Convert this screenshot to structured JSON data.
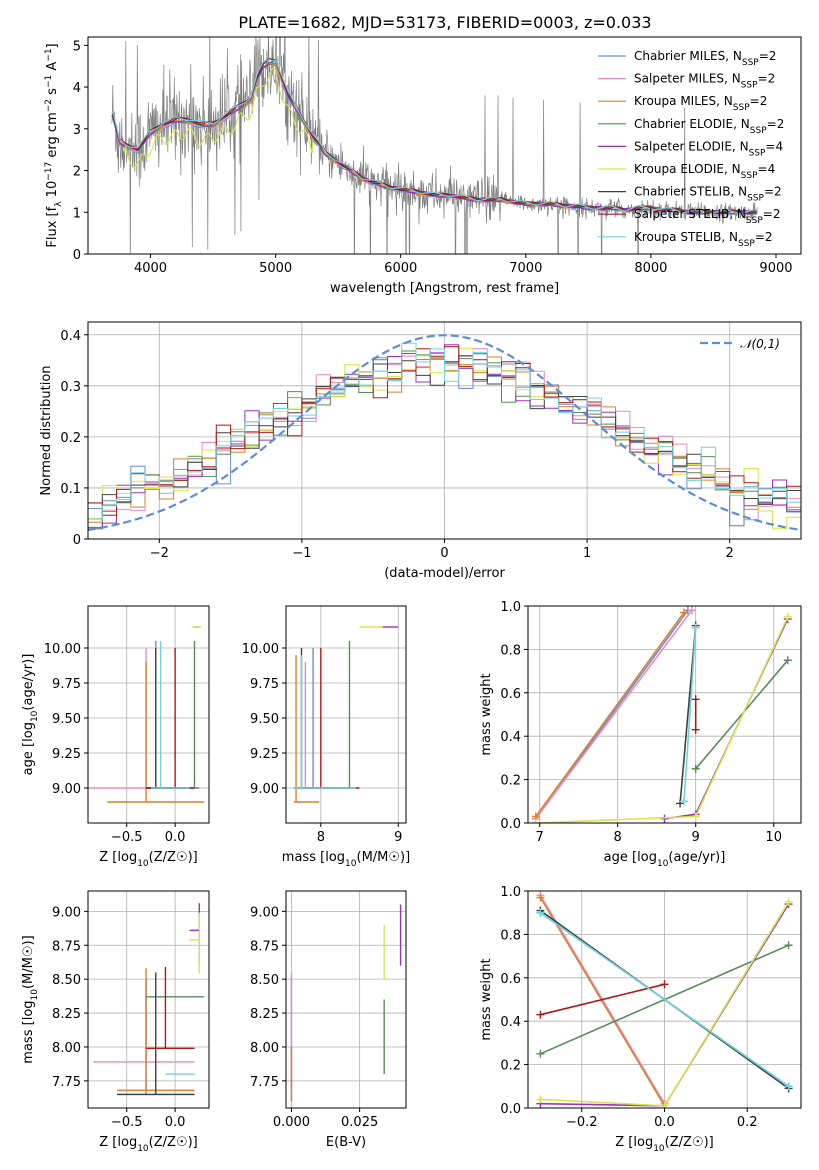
{
  "figure": {
    "title": "PLATE=1682, MJD=53173, FIBERID=0003, z=0.033"
  },
  "models": [
    {
      "name": "Chabrier MILES",
      "color": "#6a8fd6"
    },
    {
      "name": "Salpeter MILES",
      "color": "#e88cc4"
    },
    {
      "name": "Kroupa MILES",
      "color": "#d9822b"
    },
    {
      "name": "Chabrier ELODIE",
      "color": "#5a8a5a"
    },
    {
      "name": "Salpeter ELODIE",
      "color": "#9b30b8"
    },
    {
      "name": "Kroupa ELODIE",
      "color": "#d7e64a"
    },
    {
      "name": "Chabrier STELIB",
      "color": "#404040"
    },
    {
      "name": "Salpeter STELIB",
      "color": "#b01818"
    },
    {
      "name": "Kroupa STELIB",
      "color": "#6fd3dc"
    }
  ],
  "chart_data": [
    {
      "id": "spectrum",
      "type": "line",
      "title": "PLATE=1682, MJD=53173, FIBERID=0003, z=0.033",
      "xlabel": "wavelength [Angstrom, rest frame]",
      "ylabel": "Flux [f_λ 10^-17 erg cm^-2 s^-1 A^-1]",
      "xlim": [
        3500,
        9200
      ],
      "ylim": [
        0,
        5.2
      ],
      "xticks": [
        4000,
        5000,
        6000,
        7000,
        8000,
        9000
      ],
      "yticks": [
        0,
        1,
        2,
        3,
        4,
        5
      ],
      "legend": "top-right",
      "legend_entries": [
        "Chabrier MILES, N_SSP=2",
        "Salpeter MILES, N_SSP=2",
        "Kroupa MILES, N_SSP=2",
        "Chabrier ELODIE, N_SSP=2",
        "Salpeter ELODIE, N_SSP=4",
        "Kroupa ELODIE, N_SSP=4",
        "Chabrier STELIB, N_SSP=2",
        "Salpeter STELIB, N_SSP=2",
        "Kroupa STELIB, N_SSP=2"
      ],
      "model_curve": {
        "x": [
          3700,
          3750,
          3800,
          3900,
          4000,
          4100,
          4200,
          4300,
          4400,
          4500,
          4600,
          4700,
          4800,
          4850,
          4900,
          4950,
          5000,
          5050,
          5100,
          5200,
          5300,
          5400,
          5500,
          5600,
          5700,
          5800,
          5900,
          6000,
          6100,
          6200,
          6300,
          6400,
          6500,
          6600,
          6700,
          6800,
          6900,
          7000,
          7100,
          7200,
          7300,
          7400,
          7500,
          7600,
          7700,
          7800,
          7900,
          8000,
          8100,
          8200,
          8300,
          8400,
          8500,
          8600,
          8700,
          8800,
          8850
        ],
        "y": [
          3.3,
          2.7,
          2.6,
          2.5,
          2.9,
          3.1,
          3.2,
          3.2,
          3.1,
          3.1,
          3.3,
          3.5,
          3.7,
          4.2,
          4.5,
          4.6,
          4.6,
          4.2,
          3.8,
          3.3,
          2.8,
          2.4,
          2.2,
          2.0,
          1.8,
          1.7,
          1.6,
          1.55,
          1.5,
          1.45,
          1.4,
          1.4,
          1.35,
          1.3,
          1.3,
          1.3,
          1.25,
          1.2,
          1.2,
          1.2,
          1.15,
          1.15,
          1.1,
          1.1,
          1.1,
          1.05,
          1.1,
          1.1,
          1.05,
          1.05,
          1.0,
          1.0,
          1.0,
          1.0,
          1.0,
          1.0,
          1.0
        ]
      },
      "data_curve": {
        "name": "observed",
        "color": "#808080"
      }
    },
    {
      "id": "residuals",
      "type": "line",
      "xlabel": "(data-model)/error",
      "ylabel": "Normed distribution",
      "xlim": [
        -2.5,
        2.5
      ],
      "ylim": [
        0,
        0.425
      ],
      "xticks": [
        -2,
        -1,
        0,
        1,
        2
      ],
      "yticks": [
        0.0,
        0.1,
        0.2,
        0.3,
        0.4
      ],
      "grid": true,
      "legend": "top-right",
      "reference": {
        "name": "𝒩(0,1)",
        "color": "#5b8dd8",
        "mu": 0,
        "sigma": 1
      },
      "histogram_bin_width": 0.1
    },
    {
      "id": "age_vs_Z",
      "type": "scatter",
      "xlabel": "Z [log10(Z/Z☉)]",
      "ylabel": "age  [log10(age/yr)]",
      "xlim": [
        -0.9,
        0.35
      ],
      "ylim": [
        8.75,
        10.3
      ],
      "xticks": [
        -0.5,
        0.0
      ],
      "yticks": [
        9.0,
        9.25,
        9.5,
        9.75,
        10.0
      ],
      "grid": true,
      "errorbars": [
        {
          "model": 0,
          "x": -0.2,
          "y": 9.0,
          "xerr": [
            0.05,
            0.05
          ],
          "yerr": [
            0.0,
            1.05
          ]
        },
        {
          "model": 1,
          "x": -0.3,
          "y": 9.0,
          "xerr": [
            0.6,
            0.4
          ],
          "yerr": [
            0.0,
            1.0
          ]
        },
        {
          "model": 2,
          "x": -0.3,
          "y": 8.9,
          "xerr": [
            0.4,
            0.6
          ],
          "yerr": [
            0.0,
            1.0
          ]
        },
        {
          "model": 3,
          "x": 0.2,
          "y": 9.0,
          "xerr": [
            0.5,
            0.05
          ],
          "yerr": [
            0.0,
            1.05
          ]
        },
        {
          "model": 4,
          "x": 0.25,
          "y": 10.15,
          "xerr": [
            0.05,
            0.0
          ],
          "yerr": [
            0.0,
            0.0
          ]
        },
        {
          "model": 5,
          "x": 0.22,
          "y": 10.15,
          "xerr": [
            0.05,
            0.05
          ],
          "yerr": [
            0.0,
            0.0
          ]
        },
        {
          "model": 6,
          "x": -0.2,
          "y": 9.0,
          "xerr": [
            0.1,
            0.3
          ],
          "yerr": [
            0.0,
            1.0
          ]
        },
        {
          "model": 7,
          "x": 0.0,
          "y": 9.0,
          "xerr": [
            0.3,
            0.2
          ],
          "yerr": [
            0.0,
            1.0
          ]
        },
        {
          "model": 8,
          "x": -0.15,
          "y": 9.0,
          "xerr": [
            0.1,
            0.3
          ],
          "yerr": [
            0.0,
            1.05
          ]
        }
      ]
    },
    {
      "id": "age_vs_mass",
      "type": "scatter",
      "xlabel": "mass [log10(M/M☉)]",
      "ylabel": "",
      "xlim": [
        7.55,
        9.1
      ],
      "ylim": [
        8.75,
        10.3
      ],
      "xticks": [
        8,
        9
      ],
      "yticks": [
        9.0,
        9.25,
        9.5,
        9.75,
        10.0
      ],
      "grid": true,
      "errorbars": [
        {
          "model": 0,
          "x": 7.9,
          "y": 9.0,
          "xerr": [
            0.2,
            0.1
          ],
          "yerr": [
            0.0,
            1.0
          ]
        },
        {
          "model": 1,
          "x": 7.8,
          "y": 9.0,
          "xerr": [
            0.1,
            0.1
          ],
          "yerr": [
            0.0,
            0.9
          ]
        },
        {
          "model": 2,
          "x": 7.68,
          "y": 8.9,
          "xerr": [
            0.03,
            0.3
          ],
          "yerr": [
            0.0,
            1.05
          ]
        },
        {
          "model": 3,
          "x": 8.37,
          "y": 9.0,
          "xerr": [
            0.6,
            0.0
          ],
          "yerr": [
            0.0,
            1.05
          ]
        },
        {
          "model": 4,
          "x": 8.9,
          "y": 10.15,
          "xerr": [
            0.1,
            0.1
          ],
          "yerr": [
            0.0,
            0.0
          ]
        },
        {
          "model": 5,
          "x": 8.8,
          "y": 10.15,
          "xerr": [
            0.3,
            0.0
          ],
          "yerr": [
            0.0,
            0.0
          ]
        },
        {
          "model": 6,
          "x": 7.75,
          "y": 9.0,
          "xerr": [
            0.1,
            0.1
          ],
          "yerr": [
            0.0,
            1.0
          ]
        },
        {
          "model": 7,
          "x": 8.0,
          "y": 9.0,
          "xerr": [
            0.2,
            0.5
          ],
          "yerr": [
            0.0,
            1.0
          ]
        },
        {
          "model": 8,
          "x": 7.75,
          "y": 9.0,
          "xerr": [
            0.1,
            0.7
          ],
          "yerr": [
            0.0,
            0.95
          ]
        }
      ]
    },
    {
      "id": "weight_vs_age",
      "type": "line",
      "xlabel": "age  [log10(age/yr)]",
      "ylabel": "mass weight",
      "xlim": [
        6.85,
        10.35
      ],
      "ylim": [
        0,
        1.0
      ],
      "xticks": [
        7,
        8,
        9,
        10
      ],
      "yticks": [
        0.0,
        0.2,
        0.4,
        0.6,
        0.8,
        1.0
      ],
      "grid": true,
      "series": [
        {
          "model": 0,
          "x": [
            6.95,
            8.9
          ],
          "y": [
            0.02,
            0.98
          ]
        },
        {
          "model": 1,
          "x": [
            6.95,
            8.95
          ],
          "y": [
            0.02,
            0.98
          ]
        },
        {
          "model": 2,
          "x": [
            6.95,
            8.85
          ],
          "y": [
            0.03,
            0.97
          ]
        },
        {
          "model": 3,
          "x": [
            9.0,
            10.18
          ],
          "y": [
            0.25,
            0.75
          ]
        },
        {
          "model": 4,
          "x": [
            8.6,
            9.0,
            10.18
          ],
          "y": [
            0.02,
            0.04,
            0.94
          ]
        },
        {
          "model": 5,
          "x": [
            6.95,
            9.0,
            10.18
          ],
          "y": [
            0.0,
            0.03,
            0.95
          ]
        },
        {
          "model": 6,
          "x": [
            8.8,
            9.0
          ],
          "y": [
            0.09,
            0.91
          ]
        },
        {
          "model": 7,
          "x": [
            9.0,
            9.0
          ],
          "y": [
            0.43,
            0.57
          ]
        },
        {
          "model": 8,
          "x": [
            8.85,
            9.0
          ],
          "y": [
            0.1,
            0.9
          ]
        }
      ]
    },
    {
      "id": "mass_vs_Z",
      "type": "scatter",
      "xlabel": "Z [log10(Z/Z☉)]",
      "ylabel": "mass [log10(M/M☉)]",
      "xlim": [
        -0.9,
        0.35
      ],
      "ylim": [
        7.55,
        9.15
      ],
      "xticks": [
        -0.5,
        0.0
      ],
      "yticks": [
        7.75,
        8.0,
        8.25,
        8.5,
        8.75,
        9.0
      ],
      "grid": true,
      "errorbars": [
        {
          "model": 0,
          "x": -0.3,
          "y": 7.65,
          "xerr": [
            0.3,
            0.5
          ],
          "yerr": [
            0.0,
            0.85
          ]
        },
        {
          "model": 1,
          "x": -0.3,
          "y": 7.89,
          "xerr": [
            0.55,
            0.5
          ],
          "yerr": [
            0.0,
            0.6
          ]
        },
        {
          "model": 2,
          "x": -0.3,
          "y": 7.68,
          "xerr": [
            0.3,
            0.5
          ],
          "yerr": [
            0.0,
            0.9
          ]
        },
        {
          "model": 3,
          "x": 0.2,
          "y": 8.37,
          "xerr": [
            0.5,
            0.1
          ],
          "yerr": [
            0.0,
            0.0
          ]
        },
        {
          "model": 4,
          "x": 0.25,
          "y": 8.86,
          "xerr": [
            0.1,
            0.0
          ],
          "yerr": [
            0.25,
            0.2
          ]
        },
        {
          "model": 5,
          "x": 0.25,
          "y": 8.79,
          "xerr": [
            0.1,
            0.0
          ],
          "yerr": [
            0.25,
            0.2
          ]
        },
        {
          "model": 6,
          "x": -0.2,
          "y": 7.65,
          "xerr": [
            0.4,
            0.4
          ],
          "yerr": [
            0.0,
            0.9
          ]
        },
        {
          "model": 7,
          "x": -0.1,
          "y": 7.99,
          "xerr": [
            0.2,
            0.3
          ],
          "yerr": [
            0.0,
            0.6
          ]
        },
        {
          "model": 8,
          "x": 0.2,
          "y": 7.8,
          "xerr": [
            0.3,
            0.0
          ],
          "yerr": [
            0.0,
            0.0
          ]
        }
      ]
    },
    {
      "id": "mass_vs_ebv",
      "type": "scatter",
      "xlabel": "E(B-V)",
      "ylabel": "",
      "xlim": [
        -0.002,
        0.042
      ],
      "ylim": [
        7.55,
        9.15
      ],
      "xticks": [
        0.0,
        0.025
      ],
      "yticks": [
        7.75,
        8.0,
        8.25,
        8.5,
        8.75,
        9.0
      ],
      "grid": true,
      "errorbars": [
        {
          "model": 0,
          "x": 0.0,
          "y": 8.0,
          "xerr": [
            0,
            0
          ],
          "yerr": [
            0.4,
            0.5
          ]
        },
        {
          "model": 1,
          "x": 0.0,
          "y": 8.0,
          "xerr": [
            0,
            0
          ],
          "yerr": [
            0.3,
            0.55
          ]
        },
        {
          "model": 2,
          "x": 0.0,
          "y": 7.7,
          "xerr": [
            0,
            0
          ],
          "yerr": [
            0.1,
            0.3
          ]
        },
        {
          "model": 3,
          "x": 0.034,
          "y": 8.05,
          "xerr": [
            0,
            0
          ],
          "yerr": [
            0.25,
            0.3
          ]
        },
        {
          "model": 4,
          "x": 0.04,
          "y": 8.85,
          "xerr": [
            0,
            0
          ],
          "yerr": [
            0.25,
            0.2
          ]
        },
        {
          "model": 5,
          "x": 0.034,
          "y": 8.7,
          "xerr": [
            0,
            0
          ],
          "yerr": [
            0.2,
            0.2
          ]
        }
      ]
    },
    {
      "id": "weight_vs_Z",
      "type": "line",
      "xlabel": "Z [log10(Z/Z☉)]",
      "ylabel": "mass weight",
      "xlim": [
        -0.33,
        0.33
      ],
      "ylim": [
        0,
        1.0
      ],
      "xticks": [
        -0.2,
        0.0,
        0.2
      ],
      "yticks": [
        0.0,
        0.2,
        0.4,
        0.6,
        0.8,
        1.0
      ],
      "grid": true,
      "series": [
        {
          "model": 0,
          "x": [
            -0.3,
            0.3
          ],
          "y": [
            0.9,
            0.1
          ]
        },
        {
          "model": 1,
          "x": [
            -0.3,
            0.0
          ],
          "y": [
            0.98,
            0.02
          ]
        },
        {
          "model": 2,
          "x": [
            -0.3,
            0.0
          ],
          "y": [
            0.97,
            0.01
          ]
        },
        {
          "model": 3,
          "x": [
            -0.3,
            0.3
          ],
          "y": [
            0.25,
            0.75
          ]
        },
        {
          "model": 4,
          "x": [
            -0.3,
            0.0,
            0.3
          ],
          "y": [
            0.02,
            0.01,
            0.94
          ]
        },
        {
          "model": 5,
          "x": [
            -0.3,
            0.0,
            0.3
          ],
          "y": [
            0.04,
            0.01,
            0.95
          ]
        },
        {
          "model": 6,
          "x": [
            -0.3,
            0.3
          ],
          "y": [
            0.91,
            0.09
          ]
        },
        {
          "model": 7,
          "x": [
            -0.3,
            0.0
          ],
          "y": [
            0.43,
            0.57
          ]
        },
        {
          "model": 8,
          "x": [
            -0.3,
            0.3
          ],
          "y": [
            0.9,
            0.1
          ]
        }
      ]
    }
  ]
}
